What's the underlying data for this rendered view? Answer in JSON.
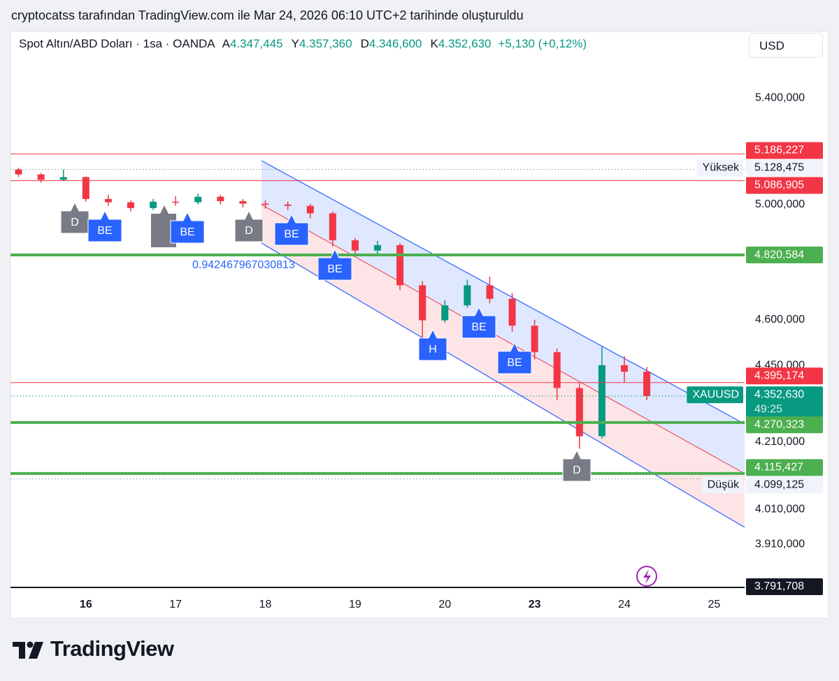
{
  "header": {
    "caption": "cryptocatss tarafından TradingView.com ile Mar 24, 2026 06:10 UTC+2 tarihinde oluşturuldu",
    "brand": "TradingView"
  },
  "chart_data": {
    "type": "candlestick",
    "title": "Spot Altın/ABD Doları · 1sa · OANDA",
    "ohlc_legend": [
      {
        "key": "A",
        "text": "4.347,445"
      },
      {
        "key": "Y",
        "text": "4.357,360"
      },
      {
        "key": "D",
        "text": "4.346,600"
      },
      {
        "key": "K",
        "text": "4.352,630"
      }
    ],
    "change": "+5,130 (+0,12%)",
    "currency": "USD",
    "up_color": "#089981",
    "down_color": "#f23645",
    "log_scale": true,
    "grid": false,
    "x": [
      15.25,
      15.5,
      15.75,
      16,
      16.25,
      16.5,
      16.75,
      17,
      17.25,
      17.5,
      17.75,
      18,
      18.25,
      18.5,
      18.75,
      19,
      19.25,
      19.5,
      19.75,
      20,
      20.25,
      20.5,
      20.75,
      23,
      23.25,
      23.5,
      23.75,
      24,
      24.25
    ],
    "open": [
      5128,
      5110,
      5090,
      5100,
      5020,
      5008,
      4987,
      5010,
      5008,
      5028,
      5012,
      5003,
      5000,
      4995,
      4968,
      4872,
      4836,
      4855,
      4716,
      4598,
      4648,
      4716,
      4670,
      4580,
      4493,
      4378,
      4228,
      4451,
      4430
    ],
    "high": [
      5135,
      5115,
      5128,
      5102,
      5035,
      5015,
      5020,
      5030,
      5040,
      5035,
      5020,
      5015,
      5010,
      5002,
      4975,
      4880,
      4870,
      4862,
      4730,
      4665,
      4735,
      4745,
      4690,
      4600,
      4505,
      4395,
      4510,
      4480,
      4445
    ],
    "low": [
      5100,
      5080,
      5085,
      5010,
      4995,
      4975,
      4980,
      4995,
      5000,
      5000,
      4990,
      4985,
      4980,
      4950,
      4850,
      4815,
      4820,
      4700,
      4530,
      4590,
      4640,
      4655,
      4560,
      4470,
      4340,
      4190,
      4220,
      4395,
      4340
    ],
    "close": [
      5110,
      5090,
      5100,
      5020,
      5008,
      4987,
      5010,
      5008,
      5028,
      5012,
      5003,
      5000,
      4995,
      4968,
      4872,
      4836,
      4855,
      4716,
      4598,
      4648,
      4716,
      4670,
      4580,
      4493,
      4378,
      4228,
      4451,
      4430,
      4352.63
    ],
    "xlim": [
      15.16,
      25.34
    ],
    "xticks": [
      16,
      17,
      18,
      19,
      20,
      23,
      24,
      25
    ],
    "ylim": [
      3791.708,
      5667
    ],
    "yticks": [
      {
        "value": 5400,
        "label": "5.400,000"
      },
      {
        "value": 5000,
        "label": "5.000,000"
      },
      {
        "value": 4600,
        "label": "4.600,000"
      },
      {
        "value": 4450,
        "label": "4.450,000"
      },
      {
        "value": 4210,
        "label": "4.210,000"
      },
      {
        "value": 4010,
        "label": "4.010,000"
      },
      {
        "value": 3910,
        "label": "3.910,000"
      }
    ],
    "levels": [
      {
        "value": 5186.227,
        "label": "5.186,227",
        "color": "#f23645",
        "line": "solid"
      },
      {
        "value": 5128.475,
        "label": "5.128,475",
        "name": "Yüksek",
        "color": "#f0f3fa",
        "line": "dotted"
      },
      {
        "value": 5086.905,
        "label": "5.086,905",
        "color": "#f23645",
        "line": "solid"
      },
      {
        "value": 4820.584,
        "label": "4.820,584",
        "color": "#4caf50",
        "line": "thick"
      },
      {
        "value": 4395.174,
        "label": "4.395,174",
        "color": "#f23645",
        "line": "solid"
      },
      {
        "value": 4352.63,
        "label": "4.352,630",
        "name": "XAUUSD",
        "countdown": "49:25",
        "color": "#089981",
        "line": "dotted"
      },
      {
        "value": 4270.323,
        "label": "4.270,323",
        "color": "#4caf50",
        "line": "thick"
      },
      {
        "value": 4115.427,
        "label": "4.115,427",
        "color": "#4caf50",
        "line": "thick"
      },
      {
        "value": 4099.125,
        "label": "4.099,125",
        "name": "Düşük",
        "color": "#f0f3fa",
        "line": "dotted"
      },
      {
        "value": 3791.708,
        "label": "3.791,708",
        "color": "#131722",
        "line": "none"
      }
    ],
    "annotations": {
      "fib": "0.942467967030813",
      "markers": [
        "D",
        "BE",
        "BE",
        "D",
        "BE",
        "BE",
        "H",
        "BE",
        "BE",
        "D"
      ]
    }
  }
}
